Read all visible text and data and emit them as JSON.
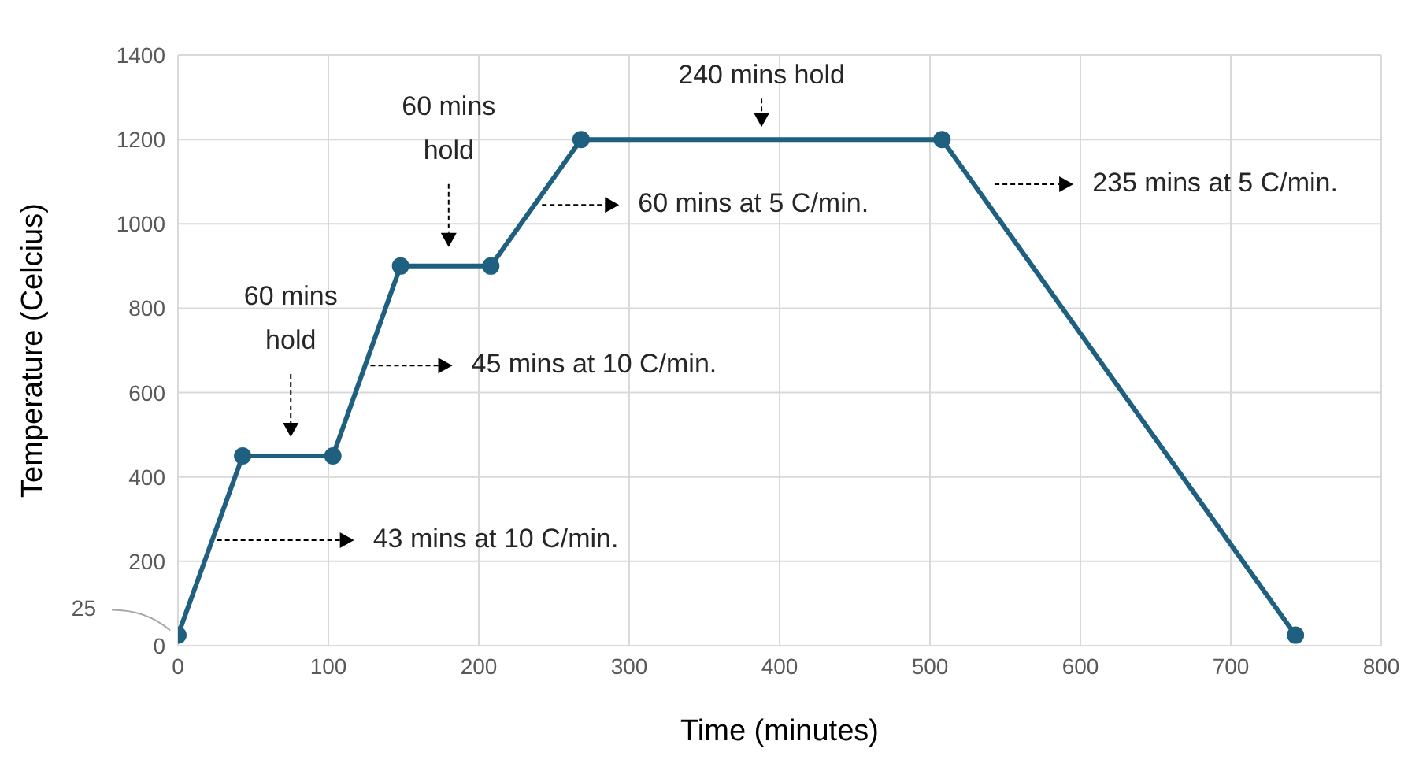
{
  "chart_data": {
    "type": "line",
    "xlabel": "Time (minutes)",
    "ylabel": "Temperature (Celcius)",
    "x": [
      0,
      43,
      103,
      148,
      208,
      268,
      508,
      743
    ],
    "values": [
      25,
      450,
      450,
      900,
      900,
      1200,
      1200,
      25
    ],
    "color": "#1f5f7f",
    "marker": "circle",
    "line_style": "solid",
    "xlim": [
      0,
      800
    ],
    "xticks": [
      0,
      100,
      200,
      300,
      400,
      500,
      600,
      700,
      800
    ],
    "ylim": [
      0,
      1400
    ],
    "yticks": [
      0,
      200,
      400,
      600,
      800,
      1000,
      1200,
      1400
    ],
    "grid": true,
    "annotations": [
      {
        "text": "25",
        "x": 0,
        "y": 25
      },
      {
        "text": "43 mins at 10 C/min.",
        "x": 26,
        "y": 250
      },
      "60 mins hold",
      {
        "text": "45 mins at 10 C/min.",
        "x": 128,
        "y": 664
      },
      "60 mins hold",
      {
        "text": "60 mins at 5 C/min.",
        "x": 242,
        "y": 1045
      },
      {
        "text": "240 mins hold",
        "x": 388,
        "y": 1200
      },
      "235 mins at 5 C/min."
    ]
  }
}
